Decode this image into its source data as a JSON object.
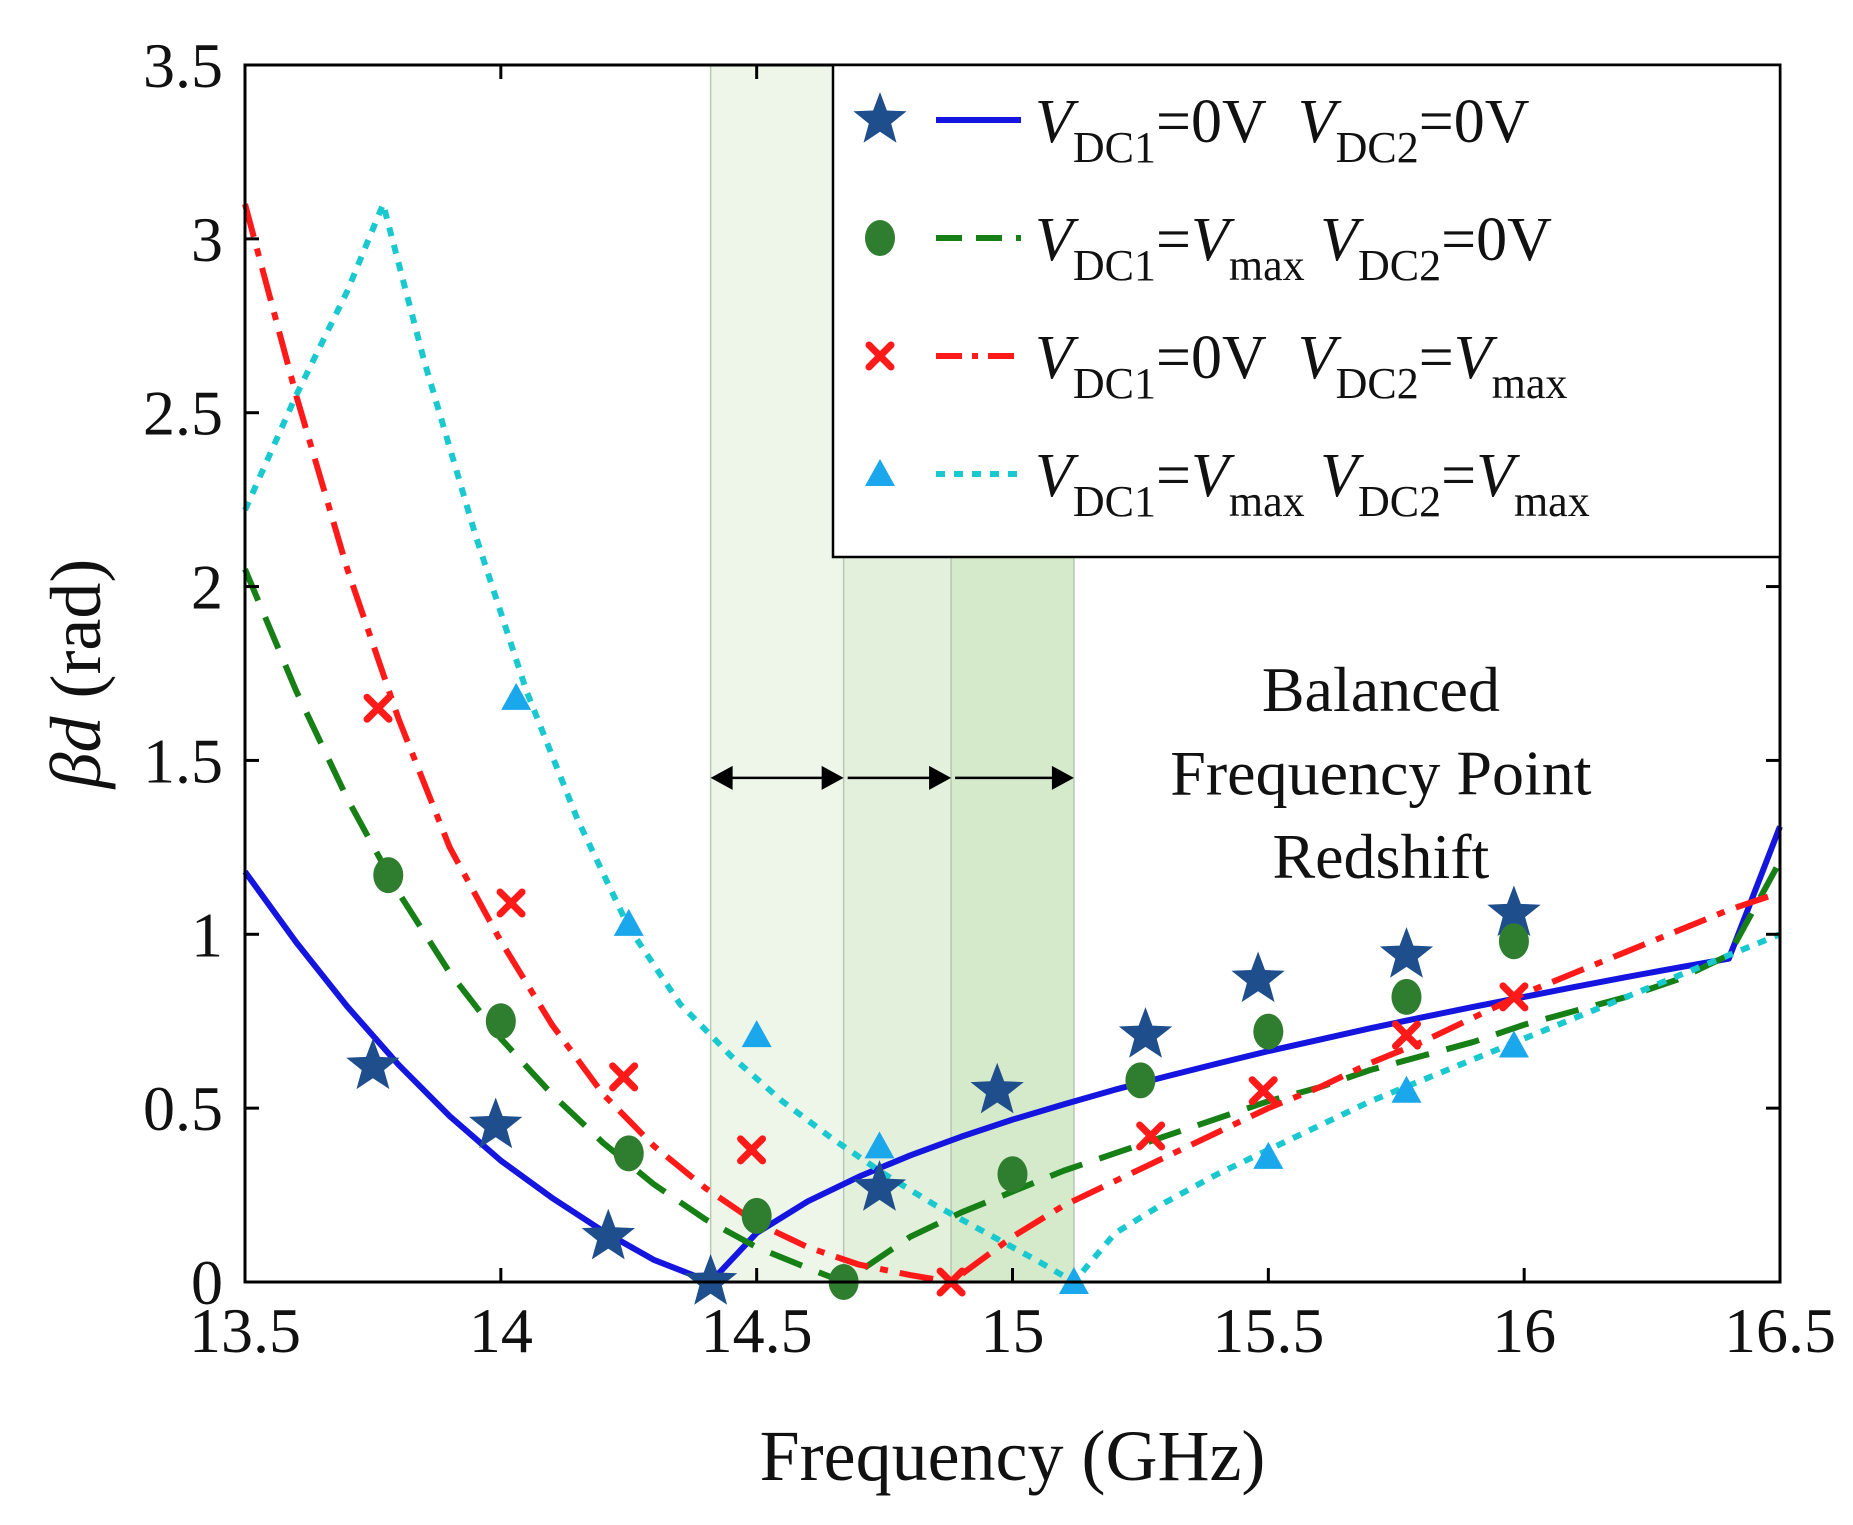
{
  "chart_data": {
    "type": "line",
    "title": "",
    "xlabel": "Frequency (GHz)",
    "ylabel_symbol": "βd",
    "ylabel_unit": "(rad)",
    "xlim": [
      13.5,
      16.5
    ],
    "ylim": [
      0,
      3.5
    ],
    "xticks": [
      13.5,
      14,
      14.5,
      15,
      15.5,
      16,
      16.5
    ],
    "xtick_labels": [
      "13.5",
      "14",
      "14.5",
      "15",
      "15.5",
      "16",
      "16.5"
    ],
    "yticks": [
      0,
      0.5,
      1,
      1.5,
      2,
      2.5,
      3,
      3.5
    ],
    "ytick_labels": [
      "0",
      "0.5",
      "1",
      "1.5",
      "2",
      "2.5",
      "3",
      "3.5"
    ],
    "grid": false,
    "legend_placement": "top-right",
    "shaded_bands": [
      {
        "x_start": 14.41,
        "x_end": 14.67,
        "color": "#eef6ea"
      },
      {
        "x_start": 14.67,
        "x_end": 14.88,
        "color": "#e2f0dc"
      },
      {
        "x_start": 14.88,
        "x_end": 15.12,
        "color": "#d4eacb"
      }
    ],
    "band_arrows": [
      {
        "x_start": 14.41,
        "x_end": 14.67,
        "y": 1.45
      },
      {
        "x_start": 14.67,
        "x_end": 14.88,
        "y": 1.45
      },
      {
        "x_start": 14.88,
        "x_end": 15.12,
        "y": 1.45
      }
    ],
    "annotation": {
      "lines": [
        "Balanced",
        "Frequency Point",
        "Redshift"
      ],
      "x": 15.72,
      "y": [
        1.7,
        1.46,
        1.22
      ]
    },
    "series": [
      {
        "name": "VDC1=0V VDC2=0V",
        "legend": [
          {
            "t": "V",
            "s": "main",
            "i": true
          },
          {
            "t": "DC1",
            "s": "sub"
          },
          {
            "t": "=0V",
            "s": "main"
          },
          {
            "t": "  ",
            "s": "main"
          },
          {
            "t": "V",
            "s": "main",
            "i": true
          },
          {
            "t": "DC2",
            "s": "sub"
          },
          {
            "t": "=0V",
            "s": "main"
          }
        ],
        "color": "#1515e0",
        "marker_color": "#1f4e8c",
        "marker": "star",
        "linestyle": "solid",
        "zero_freq": 14.41,
        "left_scale": 1.18,
        "right_scale": 1.31,
        "sim_x": [
          13.5,
          13.6,
          13.7,
          13.8,
          13.9,
          14.0,
          14.1,
          14.2,
          14.3,
          14.41,
          14.5,
          14.6,
          14.7,
          14.8,
          14.9,
          15.0,
          15.1,
          15.2,
          15.3,
          15.4,
          15.5,
          15.6,
          15.7,
          15.8,
          15.9,
          16.0,
          16.1,
          16.2,
          16.3,
          16.4,
          16.5
        ],
        "sim_y": [
          1.18,
          0.977,
          0.792,
          0.625,
          0.477,
          0.349,
          0.242,
          0.146,
          0.063,
          0.0,
          0.141,
          0.232,
          0.303,
          0.364,
          0.418,
          0.467,
          0.511,
          0.553,
          0.591,
          0.628,
          0.664,
          0.697,
          0.73,
          0.761,
          0.791,
          0.82,
          0.849,
          0.877,
          0.904,
          0.93,
          1.31
        ],
        "meas_x": [
          13.75,
          13.99,
          14.21,
          14.41,
          14.74,
          14.97,
          15.26,
          15.48,
          15.77,
          15.98
        ],
        "meas_y": [
          0.62,
          0.45,
          0.13,
          0.0,
          0.27,
          0.55,
          0.71,
          0.87,
          0.94,
          1.06
        ]
      },
      {
        "name": "VDC1=Vmax VDC2=0V",
        "legend": [
          {
            "t": "V",
            "s": "main",
            "i": true
          },
          {
            "t": "DC1",
            "s": "sub"
          },
          {
            "t": "=",
            "s": "main"
          },
          {
            "t": "V",
            "s": "main",
            "i": true
          },
          {
            "t": "max",
            "s": "sub"
          },
          {
            "t": " ",
            "s": "main"
          },
          {
            "t": "V",
            "s": "main",
            "i": true
          },
          {
            "t": "DC2",
            "s": "sub"
          },
          {
            "t": "=0V",
            "s": "main"
          }
        ],
        "color": "#168016",
        "marker_color": "#2f7d2f",
        "marker": "circle",
        "linestyle": "dashed",
        "zero_freq": 14.67,
        "left_scale": 2.05,
        "right_scale": 1.21,
        "sim_x": [
          13.5,
          13.6,
          13.7,
          13.8,
          13.9,
          14.0,
          14.1,
          14.2,
          14.3,
          14.4,
          14.5,
          14.6,
          14.67,
          14.8,
          14.9,
          15.0,
          15.1,
          15.2,
          15.3,
          15.4,
          15.5,
          15.6,
          15.7,
          15.8,
          15.9,
          16.0,
          16.1,
          16.2,
          16.3,
          16.4,
          16.5
        ],
        "sim_y": [
          2.05,
          1.7,
          1.39,
          1.12,
          0.89,
          0.7,
          0.54,
          0.4,
          0.28,
          0.18,
          0.1,
          0.04,
          0.0,
          0.13,
          0.2,
          0.26,
          0.32,
          0.37,
          0.42,
          0.47,
          0.52,
          0.56,
          0.61,
          0.65,
          0.69,
          0.74,
          0.78,
          0.82,
          0.87,
          0.94,
          1.21
        ],
        "meas_x": [
          13.78,
          14.0,
          14.25,
          14.5,
          14.67,
          15.0,
          15.25,
          15.5,
          15.77,
          15.98
        ],
        "meas_y": [
          1.17,
          0.75,
          0.37,
          0.19,
          0.0,
          0.31,
          0.58,
          0.72,
          0.82,
          0.98
        ]
      },
      {
        "name": "VDC1=0V VDC2=Vmax",
        "legend": [
          {
            "t": "V",
            "s": "main",
            "i": true
          },
          {
            "t": "DC1",
            "s": "sub"
          },
          {
            "t": "=0V",
            "s": "main"
          },
          {
            "t": "  ",
            "s": "main"
          },
          {
            "t": "V",
            "s": "main",
            "i": true
          },
          {
            "t": "DC2",
            "s": "sub"
          },
          {
            "t": "=",
            "s": "main"
          },
          {
            "t": "V",
            "s": "main",
            "i": true
          },
          {
            "t": "max",
            "s": "sub"
          }
        ],
        "color": "#ff1a1a",
        "marker_color": "#ff1a1a",
        "marker": "x",
        "linestyle": "dashdot",
        "zero_freq": 14.88,
        "left_scale": 3.1,
        "right_scale": 1.12,
        "sim_x": [
          13.5,
          13.6,
          13.7,
          13.8,
          13.9,
          14.0,
          14.1,
          14.2,
          14.3,
          14.4,
          14.5,
          14.6,
          14.7,
          14.8,
          14.88,
          15.0,
          15.1,
          15.2,
          15.3,
          15.4,
          15.5,
          15.6,
          15.7,
          15.8,
          15.9,
          16.0,
          16.1,
          16.2,
          16.3,
          16.4,
          16.5
        ],
        "sim_y": [
          3.1,
          2.55,
          2.05,
          1.62,
          1.25,
          0.98,
          0.74,
          0.54,
          0.39,
          0.27,
          0.17,
          0.1,
          0.05,
          0.02,
          0.0,
          0.13,
          0.22,
          0.29,
          0.36,
          0.43,
          0.5,
          0.56,
          0.63,
          0.69,
          0.76,
          0.83,
          0.89,
          0.95,
          1.01,
          1.07,
          1.12
        ],
        "meas_x": [
          13.76,
          14.02,
          14.24,
          14.49,
          14.88,
          15.27,
          15.49,
          15.77,
          15.98
        ],
        "meas_y": [
          1.65,
          1.09,
          0.59,
          0.38,
          0.0,
          0.42,
          0.55,
          0.71,
          0.82
        ]
      },
      {
        "name": "VDC1=Vmax VDC2=Vmax",
        "legend": [
          {
            "t": "V",
            "s": "main",
            "i": true
          },
          {
            "t": "DC1",
            "s": "sub"
          },
          {
            "t": "=",
            "s": "main"
          },
          {
            "t": "V",
            "s": "main",
            "i": true
          },
          {
            "t": "max",
            "s": "sub"
          },
          {
            "t": " ",
            "s": "main"
          },
          {
            "t": "V",
            "s": "main",
            "i": true
          },
          {
            "t": "DC2",
            "s": "sub"
          },
          {
            "t": "=",
            "s": "main"
          },
          {
            "t": "V",
            "s": "main",
            "i": true
          },
          {
            "t": "max",
            "s": "sub"
          }
        ],
        "color": "#19c9cf",
        "marker_color": "#1aa7ec",
        "marker": "triangle",
        "linestyle": "dotted",
        "zero_freq": 15.12,
        "left_scale": 2.22,
        "right_scale": 1.0,
        "sim_x": [
          13.5,
          13.6,
          13.7,
          13.77,
          13.85,
          13.95,
          14.05,
          14.15,
          14.25,
          14.35,
          14.45,
          14.55,
          14.65,
          14.75,
          14.85,
          14.95,
          15.05,
          15.12,
          15.2,
          15.3,
          15.4,
          15.5,
          15.6,
          15.7,
          15.8,
          15.9,
          16.0,
          16.1,
          16.2,
          16.3,
          16.4,
          16.5
        ],
        "sim_y": [
          2.22,
          2.55,
          2.85,
          3.1,
          2.65,
          2.15,
          1.7,
          1.33,
          1.02,
          0.8,
          0.65,
          0.52,
          0.41,
          0.31,
          0.22,
          0.14,
          0.06,
          0.0,
          0.14,
          0.23,
          0.31,
          0.38,
          0.45,
          0.52,
          0.58,
          0.64,
          0.7,
          0.76,
          0.82,
          0.88,
          0.94,
          1.0
        ],
        "meas_x": [
          14.03,
          14.25,
          14.5,
          14.74,
          15.12,
          15.5,
          15.77,
          15.98
        ],
        "meas_y": [
          1.68,
          1.03,
          0.71,
          0.39,
          0.0,
          0.36,
          0.55,
          0.68
        ]
      }
    ]
  }
}
